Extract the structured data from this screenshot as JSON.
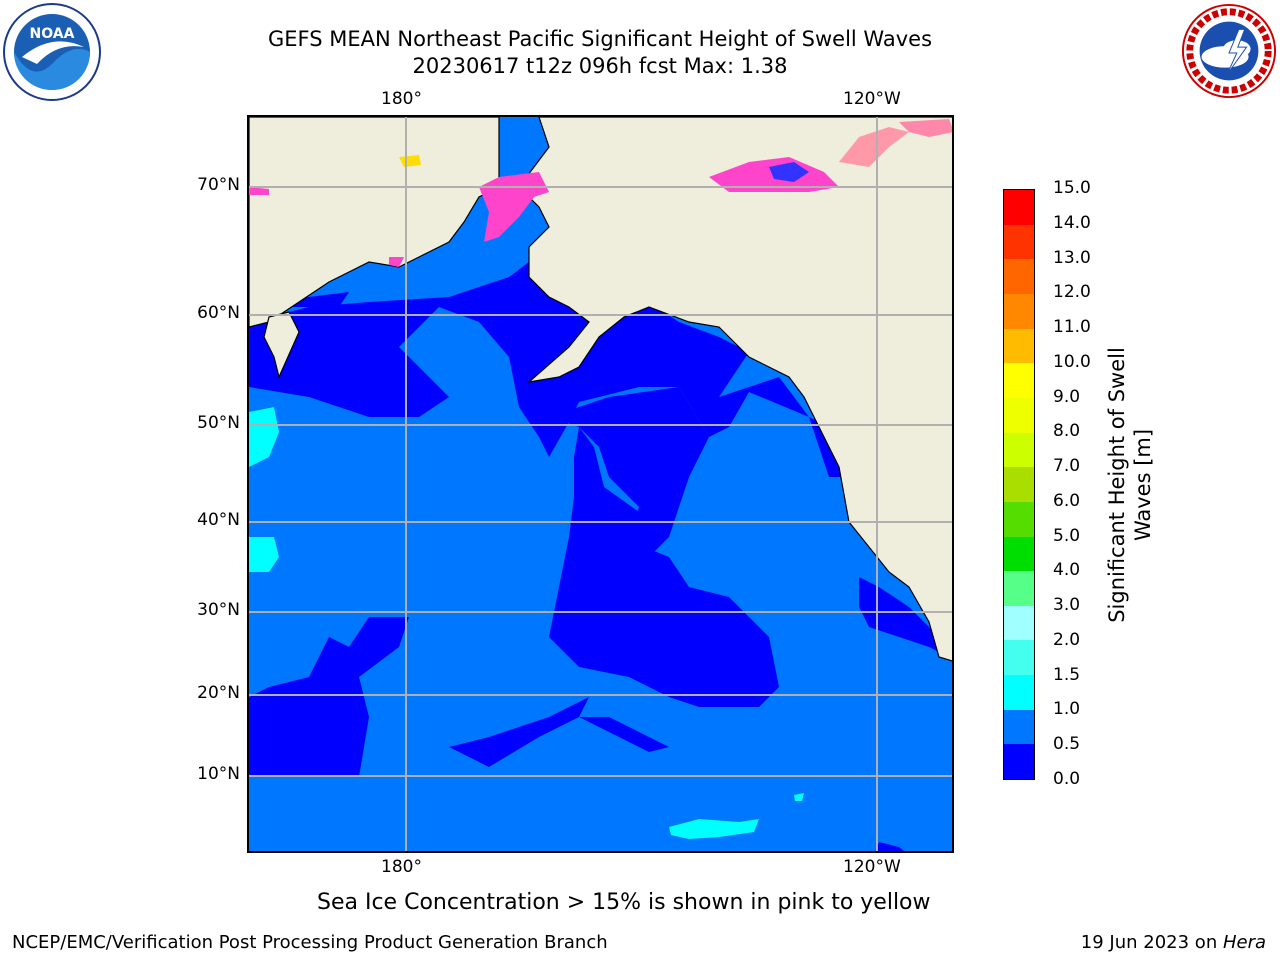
{
  "header": {
    "title": "GEFS MEAN Northeast Pacific Significant Height of Swell Waves",
    "subtitle": "20230617 t12z 096h fcst   Max: 1.38"
  },
  "logos": {
    "left": "noaa-logo",
    "right": "national-weather-service-logo",
    "left_text": "NOAA",
    "right_text": "NATIONAL WEATHER SERVICE"
  },
  "map": {
    "lon_labels_top": [
      "180°",
      "120°W"
    ],
    "lon_labels_bottom": [
      "180°",
      "120°W"
    ],
    "lat_labels": [
      "70°N",
      "60°N",
      "50°N",
      "40°N",
      "30°N",
      "20°N",
      "10°N"
    ],
    "colors": {
      "land": "#efeddc",
      "ocean_lt_0_5": "#0000ff",
      "ocean_0_5_1_0": "#0077ff",
      "ocean_1_0_1_5": "#00ffff",
      "ice": "#ff44cc",
      "gridline": "#b0b0b0"
    }
  },
  "colorbar": {
    "ticks": [
      "0.0",
      "0.5",
      "1.0",
      "1.5",
      "2.0",
      "3.0",
      "4.0",
      "5.0",
      "6.0",
      "7.0",
      "8.0",
      "9.0",
      "10.0",
      "11.0",
      "12.0",
      "13.0",
      "14.0",
      "15.0"
    ],
    "colors": [
      "#0000ff",
      "#0077ff",
      "#00ffff",
      "#44ffee",
      "#a0ffff",
      "#55ff88",
      "#00dd00",
      "#55dd00",
      "#aadd00",
      "#ccff00",
      "#eeff00",
      "#ffff00",
      "#ffbb00",
      "#ff8800",
      "#ff6600",
      "#ff3300",
      "#ff0000"
    ],
    "label_line1": "Significant Height of Swell",
    "label_line2": "Waves [m]"
  },
  "caption": "Sea Ice Concentration > 15% is shown in pink to yellow",
  "footer": {
    "left": "NCEP/EMC/Verification Post Processing Product Generation Branch",
    "right_date": "19 Jun 2023 on ",
    "right_host": "Hera"
  }
}
